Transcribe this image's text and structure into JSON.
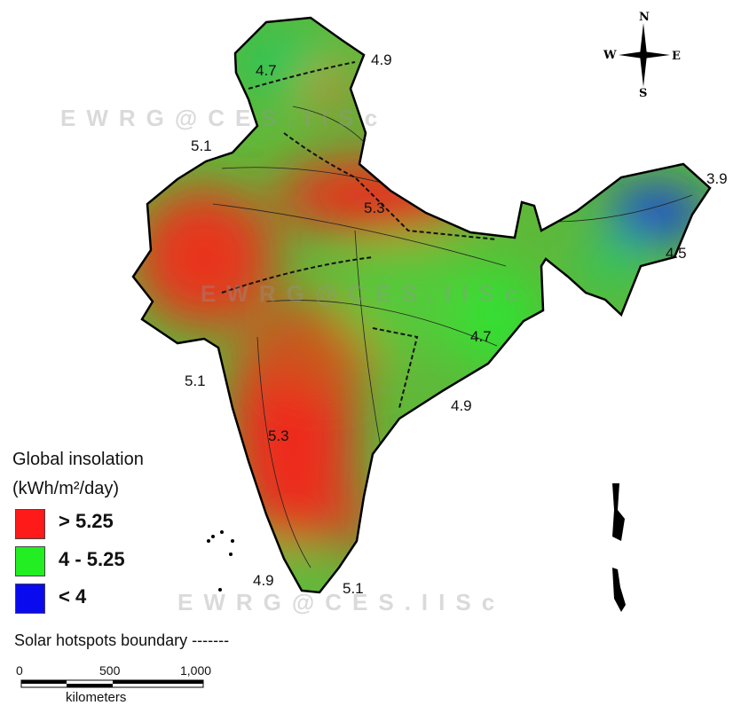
{
  "watermark": "EWRG@CES.IISc",
  "contour_labels": [
    "4.7",
    "4.9",
    "5.1",
    "5.3",
    "3.9",
    "4.5",
    "4.7",
    "4.9",
    "5.1",
    "5.3",
    "4.9",
    "5.1"
  ],
  "legend": {
    "title_line1": "Global insolation",
    "title_line2": "(kWh/m²/day)",
    "items": [
      {
        "label": "> 5.25",
        "color": "#ff1a1a"
      },
      {
        "label": "4 - 5.25",
        "color": "#22ee22"
      },
      {
        "label": "< 4",
        "color": "#0a0aee"
      }
    ],
    "boundary_label": "Solar hotspots boundary -------"
  },
  "scale_bar": {
    "ticks": [
      "0",
      "500",
      "1,000"
    ],
    "unit": "kilometers"
  },
  "compass": {
    "n": "N",
    "s": "S",
    "e": "E",
    "w": "W"
  }
}
